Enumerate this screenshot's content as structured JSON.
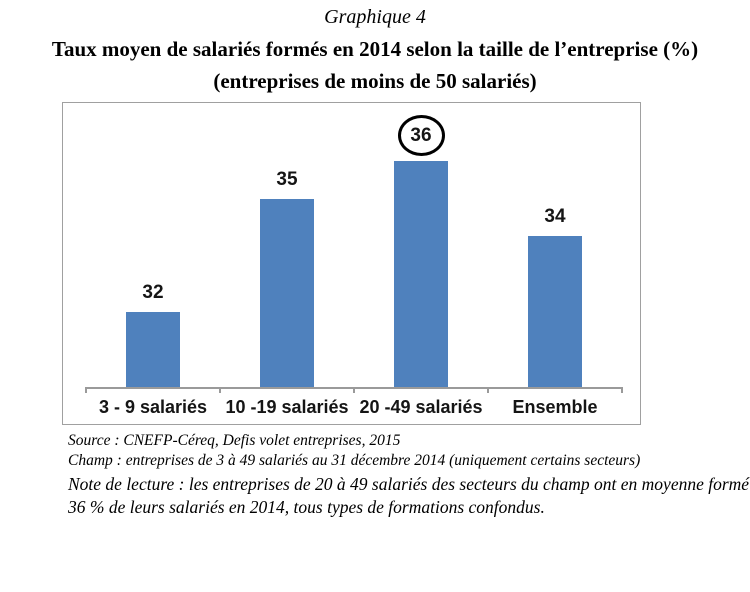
{
  "header": {
    "kicker": "Graphique 4",
    "title": "Taux moyen de salariés formés en 2014 selon la taille de l’entreprise (%)",
    "subtitle": "(entreprises de moins de 50 salariés)"
  },
  "chart_data": {
    "type": "bar",
    "categories": [
      "3 - 9 salariés",
      "10 -19 salariés",
      "20 -49 salariés",
      "Ensemble"
    ],
    "values": [
      32,
      35,
      36,
      34
    ],
    "title": "Taux moyen de salariés formés en 2014 selon la taille de l’entreprise (%)",
    "subtitle": "(entreprises de moins de 50 salariés)",
    "xlabel": "",
    "ylabel": "",
    "ylim": [
      30,
      37.5
    ],
    "grid": false,
    "legend": false,
    "data_labels_shown": true,
    "bar_color": "#4f81bd",
    "axis_color": "#9a9a9a",
    "annotation": {
      "type": "ellipse",
      "index": 2,
      "category": "20 -49 salariés",
      "value": 36,
      "color": "#000000"
    }
  },
  "notes": {
    "source": "Source : CNEFP-Céreq, Defis volet entreprises, 2015",
    "champ": "Champ : entreprises de 3 à 49 salariés au 31 décembre 2014 (uniquement certains secteurs)",
    "reading": "Note de lecture : les entreprises de 20 à 49 salariés des secteurs du champ ont en moyenne formé 36 % de leurs salariés en 2014, tous types de formations confondus."
  }
}
